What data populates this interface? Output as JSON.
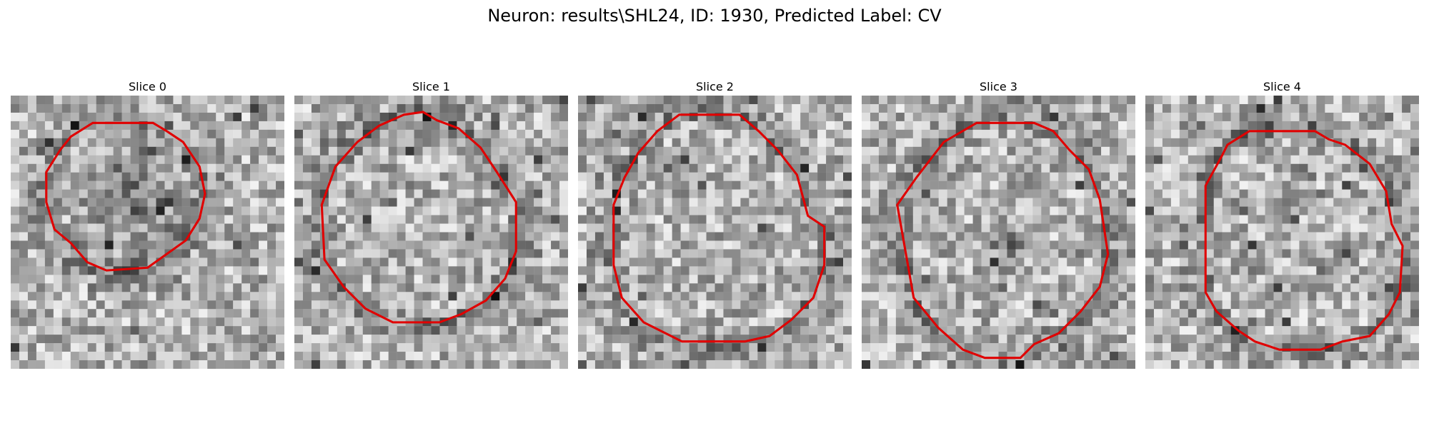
{
  "figure": {
    "title": "Neuron: results\\SHL24, ID: 1930, Predicted Label: CV"
  },
  "contour_color": "#e00000",
  "grid_size": 32,
  "slices": [
    {
      "title": "Slice 0",
      "seed": 11,
      "dark_center": [
        0.45,
        0.38
      ],
      "dark_radius": 0.28,
      "contour": [
        [
          0.3,
          0.1
        ],
        [
          0.52,
          0.1
        ],
        [
          0.57,
          0.13
        ],
        [
          0.63,
          0.17
        ],
        [
          0.69,
          0.26
        ],
        [
          0.71,
          0.36
        ],
        [
          0.69,
          0.45
        ],
        [
          0.64,
          0.53
        ],
        [
          0.57,
          0.58
        ],
        [
          0.5,
          0.63
        ],
        [
          0.35,
          0.64
        ],
        [
          0.28,
          0.61
        ],
        [
          0.22,
          0.54
        ],
        [
          0.16,
          0.49
        ],
        [
          0.13,
          0.39
        ],
        [
          0.13,
          0.28
        ],
        [
          0.18,
          0.2
        ],
        [
          0.22,
          0.15
        ]
      ]
    },
    {
      "title": "Slice 1",
      "seed": 23,
      "dark_center": [
        0.46,
        0.5
      ],
      "dark_radius": 0.0,
      "contour": [
        [
          0.4,
          0.07
        ],
        [
          0.47,
          0.06
        ],
        [
          0.52,
          0.09
        ],
        [
          0.6,
          0.12
        ],
        [
          0.68,
          0.19
        ],
        [
          0.74,
          0.28
        ],
        [
          0.81,
          0.39
        ],
        [
          0.81,
          0.57
        ],
        [
          0.77,
          0.67
        ],
        [
          0.7,
          0.75
        ],
        [
          0.61,
          0.8
        ],
        [
          0.53,
          0.83
        ],
        [
          0.36,
          0.83
        ],
        [
          0.26,
          0.78
        ],
        [
          0.18,
          0.7
        ],
        [
          0.11,
          0.6
        ],
        [
          0.1,
          0.4
        ],
        [
          0.15,
          0.26
        ],
        [
          0.23,
          0.17
        ],
        [
          0.31,
          0.11
        ]
      ]
    },
    {
      "title": "Slice 2",
      "seed": 37,
      "dark_center": [
        0.5,
        0.5
      ],
      "dark_radius": 0.0,
      "contour": [
        [
          0.37,
          0.07
        ],
        [
          0.59,
          0.07
        ],
        [
          0.66,
          0.13
        ],
        [
          0.73,
          0.2
        ],
        [
          0.8,
          0.29
        ],
        [
          0.84,
          0.44
        ],
        [
          0.9,
          0.48
        ],
        [
          0.9,
          0.62
        ],
        [
          0.86,
          0.74
        ],
        [
          0.78,
          0.82
        ],
        [
          0.7,
          0.88
        ],
        [
          0.61,
          0.9
        ],
        [
          0.38,
          0.9
        ],
        [
          0.24,
          0.83
        ],
        [
          0.16,
          0.74
        ],
        [
          0.13,
          0.62
        ],
        [
          0.13,
          0.4
        ],
        [
          0.17,
          0.3
        ],
        [
          0.22,
          0.21
        ],
        [
          0.29,
          0.13
        ]
      ]
    },
    {
      "title": "Slice 3",
      "seed": 53,
      "dark_center": [
        0.52,
        0.55
      ],
      "dark_radius": 0.1,
      "contour": [
        [
          0.42,
          0.1
        ],
        [
          0.63,
          0.1
        ],
        [
          0.7,
          0.13
        ],
        [
          0.76,
          0.2
        ],
        [
          0.83,
          0.27
        ],
        [
          0.87,
          0.38
        ],
        [
          0.9,
          0.58
        ],
        [
          0.87,
          0.7
        ],
        [
          0.8,
          0.79
        ],
        [
          0.72,
          0.87
        ],
        [
          0.63,
          0.91
        ],
        [
          0.58,
          0.96
        ],
        [
          0.45,
          0.96
        ],
        [
          0.37,
          0.93
        ],
        [
          0.28,
          0.85
        ],
        [
          0.19,
          0.74
        ],
        [
          0.16,
          0.57
        ],
        [
          0.13,
          0.4
        ],
        [
          0.2,
          0.3
        ],
        [
          0.3,
          0.17
        ]
      ]
    },
    {
      "title": "Slice 4",
      "seed": 71,
      "dark_center": [
        0.5,
        0.55
      ],
      "dark_radius": 0.0,
      "contour": [
        [
          0.38,
          0.13
        ],
        [
          0.62,
          0.13
        ],
        [
          0.67,
          0.16
        ],
        [
          0.73,
          0.18
        ],
        [
          0.82,
          0.25
        ],
        [
          0.88,
          0.35
        ],
        [
          0.9,
          0.47
        ],
        [
          0.94,
          0.55
        ],
        [
          0.93,
          0.72
        ],
        [
          0.89,
          0.8
        ],
        [
          0.82,
          0.88
        ],
        [
          0.72,
          0.9
        ],
        [
          0.64,
          0.93
        ],
        [
          0.49,
          0.93
        ],
        [
          0.4,
          0.9
        ],
        [
          0.34,
          0.86
        ],
        [
          0.26,
          0.79
        ],
        [
          0.22,
          0.72
        ],
        [
          0.22,
          0.33
        ],
        [
          0.28,
          0.22
        ],
        [
          0.3,
          0.18
        ]
      ]
    }
  ]
}
